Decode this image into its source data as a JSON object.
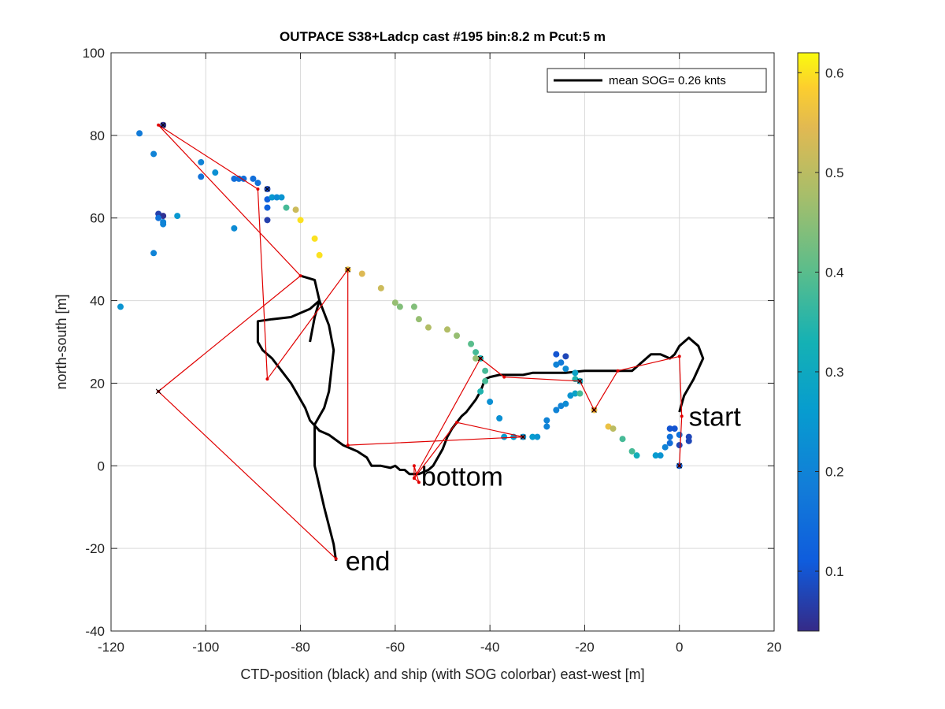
{
  "chart_data": {
    "type": "scatter",
    "title": "OUTPACE S38+Ladcp cast #195 bin:8.2 m  Pcut:5 m",
    "xlabel": "CTD-position (black) and ship (with SOG colorbar) east-west [m]",
    "ylabel": "north-south [m]",
    "xlim": [
      -120,
      20
    ],
    "ylim": [
      -40,
      100
    ],
    "xticks": [
      "-120",
      "-100",
      "-80",
      "-60",
      "-40",
      "-20",
      "0",
      "20"
    ],
    "yticks": [
      "-40",
      "-20",
      "0",
      "20",
      "40",
      "60",
      "80",
      "100"
    ],
    "grid": true,
    "legend": {
      "position": "top-right",
      "entry": "mean SOG=  0.26 knts",
      "color": "#000000"
    },
    "colorbar": {
      "label": "",
      "range": [
        0.04,
        0.62
      ],
      "ticks": [
        "0.1",
        "0.2",
        "0.3",
        "0.4",
        "0.5",
        "0.6"
      ],
      "colormap": "parula"
    },
    "annotations": [
      {
        "text": "start",
        "x": 2,
        "y": 12
      },
      {
        "text": "bottom",
        "x": -54.5,
        "y": -2.5
      },
      {
        "text": "end",
        "x": -70.5,
        "y": -23
      }
    ],
    "series": [
      {
        "type": "line",
        "color": "#000000",
        "points": [
          [
            0,
            13
          ],
          [
            1,
            17
          ],
          [
            3,
            21
          ],
          [
            5,
            26
          ],
          [
            4,
            29
          ],
          [
            2,
            31
          ],
          [
            0,
            29
          ],
          [
            -1,
            27
          ],
          [
            -2,
            26
          ],
          [
            -4,
            27
          ],
          [
            -6,
            27
          ],
          [
            -8,
            25
          ],
          [
            -10,
            23
          ],
          [
            -13,
            23
          ],
          [
            -16,
            23
          ],
          [
            -20,
            23
          ],
          [
            -24,
            22.5
          ],
          [
            -28,
            22.5
          ],
          [
            -31,
            22.5
          ],
          [
            -33,
            22
          ],
          [
            -36,
            22
          ],
          [
            -38,
            22
          ],
          [
            -40,
            21.5
          ],
          [
            -41,
            21
          ],
          [
            -42,
            18
          ],
          [
            -43,
            16
          ],
          [
            -45,
            13
          ],
          [
            -46,
            12
          ],
          [
            -47,
            10.5
          ],
          [
            -48,
            9
          ],
          [
            -49,
            7
          ],
          [
            -50,
            4
          ],
          [
            -51,
            2
          ],
          [
            -52,
            0
          ],
          [
            -53,
            -1
          ],
          [
            -55,
            -2
          ],
          [
            -57,
            -2
          ],
          [
            -58,
            -1
          ],
          [
            -59,
            -1
          ],
          [
            -60,
            0
          ],
          [
            -61,
            -0.5
          ],
          [
            -63,
            0
          ],
          [
            -65,
            0
          ],
          [
            -66,
            2
          ],
          [
            -68,
            3.5
          ],
          [
            -71,
            5
          ],
          [
            -74,
            7.5
          ],
          [
            -76,
            8.5
          ],
          [
            -78,
            11
          ],
          [
            -79,
            14
          ],
          [
            -80,
            16
          ],
          [
            -81,
            18
          ],
          [
            -82,
            20
          ],
          [
            -84,
            23
          ],
          [
            -86,
            26
          ],
          [
            -88,
            28
          ],
          [
            -89,
            30
          ],
          [
            -89,
            35
          ],
          [
            -86,
            35.5
          ],
          [
            -82,
            36
          ],
          [
            -80,
            37
          ],
          [
            -78,
            38
          ],
          [
            -76,
            40
          ],
          [
            -74,
            34
          ],
          [
            -73,
            28
          ],
          [
            -74,
            18
          ],
          [
            -75,
            14
          ],
          [
            -77,
            10
          ],
          [
            -77,
            0
          ],
          [
            -75,
            -10
          ],
          [
            -73,
            -19
          ],
          [
            -72.5,
            -23
          ]
        ]
      },
      {
        "type": "line",
        "color": "#000000",
        "points": [
          [
            -80,
            46
          ],
          [
            -77,
            45
          ],
          [
            -76,
            40
          ],
          [
            -77,
            36
          ],
          [
            -78,
            30
          ]
        ]
      },
      {
        "type": "line",
        "color": "#e00000",
        "points": [
          [
            0,
            0
          ],
          [
            0.5,
            12
          ],
          [
            0,
            26.5
          ],
          [
            -13,
            23
          ],
          [
            -18,
            13.5
          ],
          [
            -21,
            20.5
          ],
          [
            -37,
            21.5
          ],
          [
            -42,
            26
          ],
          [
            -56,
            -3
          ],
          [
            -56,
            0
          ],
          [
            -55,
            -4
          ],
          [
            -56,
            -3
          ],
          [
            -47,
            10.5
          ],
          [
            -33,
            7
          ],
          [
            -70,
            5
          ],
          [
            -70,
            47.5
          ],
          [
            -87,
            21
          ],
          [
            -89,
            67
          ],
          [
            -110,
            82.5
          ],
          [
            -80,
            46
          ],
          [
            -110,
            18
          ],
          [
            -72.5,
            -22.5
          ]
        ]
      },
      {
        "type": "scatter",
        "name": "ship",
        "color_by": "SOG",
        "points": [
          {
            "x": -109,
            "y": 82.5,
            "v": 0.05
          },
          {
            "x": -114,
            "y": 80.5,
            "v": 0.18
          },
          {
            "x": -111,
            "y": 75.5,
            "v": 0.2
          },
          {
            "x": -101,
            "y": 73.5,
            "v": 0.2
          },
          {
            "x": -98,
            "y": 71.0,
            "v": 0.23
          },
          {
            "x": -101,
            "y": 70.0,
            "v": 0.16
          },
          {
            "x": -93,
            "y": 69.5,
            "v": 0.16
          },
          {
            "x": -92,
            "y": 69.5,
            "v": 0.15
          },
          {
            "x": -90,
            "y": 69.5,
            "v": 0.15
          },
          {
            "x": -89,
            "y": 68.5,
            "v": 0.16
          },
          {
            "x": -94,
            "y": 69.5,
            "v": 0.15
          },
          {
            "x": -87,
            "y": 67.0,
            "v": 0.08
          },
          {
            "x": -87,
            "y": 64.5,
            "v": 0.12
          },
          {
            "x": -87,
            "y": 62.5,
            "v": 0.12
          },
          {
            "x": -87,
            "y": 59.5,
            "v": 0.07
          },
          {
            "x": -86,
            "y": 65.0,
            "v": 0.25
          },
          {
            "x": -85,
            "y": 65.0,
            "v": 0.22
          },
          {
            "x": -84,
            "y": 65.0,
            "v": 0.24
          },
          {
            "x": -83,
            "y": 62.5,
            "v": 0.38
          },
          {
            "x": -81,
            "y": 62.0,
            "v": 0.52
          },
          {
            "x": -80,
            "y": 59.5,
            "v": 0.6
          },
          {
            "x": -77,
            "y": 55.0,
            "v": 0.6
          },
          {
            "x": -76,
            "y": 51.0,
            "v": 0.6
          },
          {
            "x": -110,
            "y": 61.0,
            "v": 0.07
          },
          {
            "x": -109,
            "y": 60.5,
            "v": 0.05
          },
          {
            "x": -110,
            "y": 60.0,
            "v": 0.16
          },
          {
            "x": -109,
            "y": 59.0,
            "v": 0.2
          },
          {
            "x": -109,
            "y": 58.5,
            "v": 0.2
          },
          {
            "x": -106,
            "y": 60.5,
            "v": 0.25
          },
          {
            "x": -94,
            "y": 57.5,
            "v": 0.22
          },
          {
            "x": -111,
            "y": 51.5,
            "v": 0.2
          },
          {
            "x": -118,
            "y": 38.5,
            "v": 0.24
          },
          {
            "x": -70,
            "y": 47.5,
            "v": 0.56
          },
          {
            "x": -67,
            "y": 46.5,
            "v": 0.54
          },
          {
            "x": -63,
            "y": 43.0,
            "v": 0.52
          },
          {
            "x": -60,
            "y": 39.5,
            "v": 0.46
          },
          {
            "x": -59,
            "y": 38.5,
            "v": 0.44
          },
          {
            "x": -56,
            "y": 38.5,
            "v": 0.44
          },
          {
            "x": -55,
            "y": 35.5,
            "v": 0.46
          },
          {
            "x": -53,
            "y": 33.5,
            "v": 0.49
          },
          {
            "x": -49,
            "y": 33.0,
            "v": 0.49
          },
          {
            "x": -47,
            "y": 31.5,
            "v": 0.46
          },
          {
            "x": -44,
            "y": 29.5,
            "v": 0.4
          },
          {
            "x": -43,
            "y": 27.5,
            "v": 0.38
          },
          {
            "x": -42,
            "y": 26.0,
            "v": 0.33
          },
          {
            "x": -41,
            "y": 23.0,
            "v": 0.38
          },
          {
            "x": -41,
            "y": 20.5,
            "v": 0.38
          },
          {
            "x": -42,
            "y": 18.0,
            "v": 0.34
          },
          {
            "x": -40,
            "y": 15.5,
            "v": 0.23
          },
          {
            "x": -38,
            "y": 11.5,
            "v": 0.23
          },
          {
            "x": -37,
            "y": 7.0,
            "v": 0.26
          },
          {
            "x": -35,
            "y": 7.0,
            "v": 0.26
          },
          {
            "x": -33,
            "y": 7.0,
            "v": 0.24
          },
          {
            "x": -31,
            "y": 7.0,
            "v": 0.26
          },
          {
            "x": -30,
            "y": 7.0,
            "v": 0.24
          },
          {
            "x": -28,
            "y": 9.5,
            "v": 0.2
          },
          {
            "x": -28,
            "y": 11.0,
            "v": 0.2
          },
          {
            "x": -26,
            "y": 13.5,
            "v": 0.2
          },
          {
            "x": -25,
            "y": 14.5,
            "v": 0.2
          },
          {
            "x": -24,
            "y": 15.0,
            "v": 0.22
          },
          {
            "x": -23,
            "y": 17.0,
            "v": 0.24
          },
          {
            "x": -22,
            "y": 17.5,
            "v": 0.28
          },
          {
            "x": -21,
            "y": 17.5,
            "v": 0.38
          },
          {
            "x": -22,
            "y": 21.0,
            "v": 0.34
          },
          {
            "x": -21,
            "y": 20.5,
            "v": 0.3
          },
          {
            "x": -22,
            "y": 22.5,
            "v": 0.28
          },
          {
            "x": -24,
            "y": 23.5,
            "v": 0.22
          },
          {
            "x": -25,
            "y": 25.0,
            "v": 0.18
          },
          {
            "x": -26,
            "y": 24.5,
            "v": 0.2
          },
          {
            "x": -26,
            "y": 27.0,
            "v": 0.1
          },
          {
            "x": -24,
            "y": 26.5,
            "v": 0.08
          },
          {
            "x": -18,
            "y": 13.5,
            "v": 0.56
          },
          {
            "x": -15,
            "y": 9.5,
            "v": 0.56
          },
          {
            "x": -14,
            "y": 9.0,
            "v": 0.5
          },
          {
            "x": -12,
            "y": 6.5,
            "v": 0.38
          },
          {
            "x": -10,
            "y": 3.5,
            "v": 0.38
          },
          {
            "x": -9,
            "y": 2.5,
            "v": 0.32
          },
          {
            "x": -5,
            "y": 2.5,
            "v": 0.26
          },
          {
            "x": -4,
            "y": 2.5,
            "v": 0.24
          },
          {
            "x": -3,
            "y": 4.5,
            "v": 0.2
          },
          {
            "x": -2,
            "y": 5.5,
            "v": 0.15
          },
          {
            "x": -2,
            "y": 7.0,
            "v": 0.16
          },
          {
            "x": -2,
            "y": 9.0,
            "v": 0.1
          },
          {
            "x": -1,
            "y": 9.0,
            "v": 0.1
          },
          {
            "x": 0,
            "y": 7.5,
            "v": 0.16
          },
          {
            "x": 0,
            "y": 5.0,
            "v": 0.08
          },
          {
            "x": 2,
            "y": 7.0,
            "v": 0.08
          },
          {
            "x": 2,
            "y": 6.0,
            "v": 0.08
          },
          {
            "x": 0,
            "y": 0.0,
            "v": 0.12
          },
          {
            "x": -43,
            "y": 26.0,
            "v": 0.46
          }
        ]
      },
      {
        "type": "markers",
        "name": "station-markers",
        "color": "#000000",
        "points": [
          [
            -109,
            82.5
          ],
          [
            -87,
            67
          ],
          [
            -70,
            47.5
          ],
          [
            -42,
            26
          ],
          [
            -21,
            20.5
          ],
          [
            -33,
            7
          ],
          [
            -18,
            13.5
          ],
          [
            0,
            0
          ],
          [
            -110,
            18
          ]
        ]
      }
    ]
  }
}
